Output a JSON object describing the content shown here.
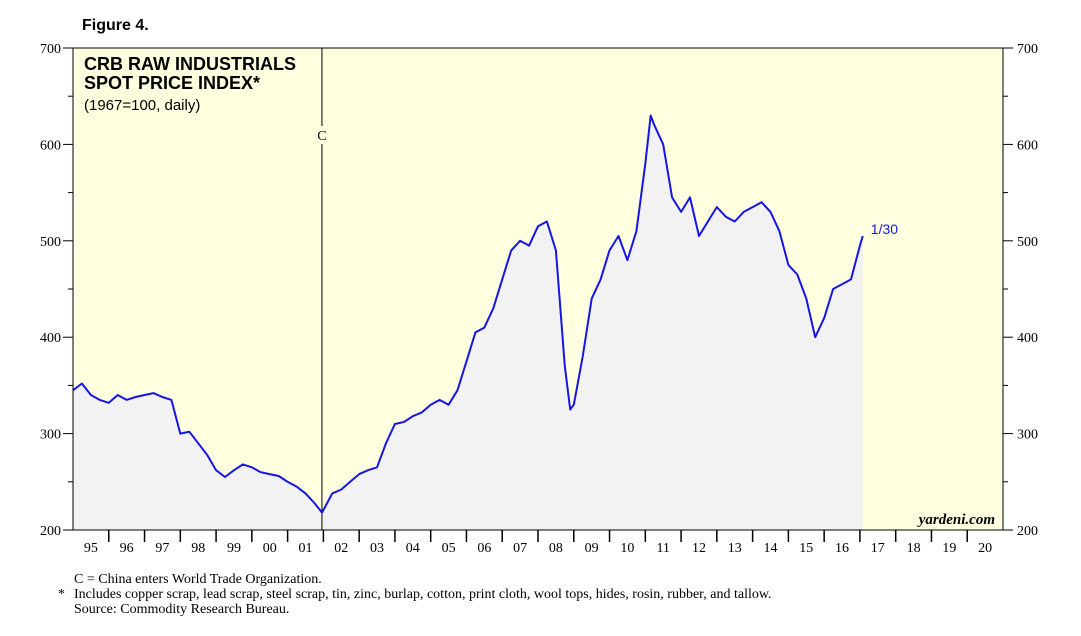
{
  "chart_data": {
    "type": "line",
    "figure_label": "Figure 4.",
    "title_lines": [
      "CRB RAW INDUSTRIALS",
      "SPOT PRICE INDEX*"
    ],
    "subtitle": "(1967=100, daily)",
    "watermark": "yardeni.com",
    "end_label": "1/30",
    "annotations": [
      {
        "label": "C",
        "x": 2001.96
      }
    ],
    "footnotes": [
      {
        "text": "C = China enters World Trade Organization."
      },
      {
        "marker": "*",
        "text": "Includes copper scrap, lead scrap, steel scrap, tin, zinc, burlap, cotton, print cloth, wool tops, hides, rosin, rubber, and tallow."
      },
      {
        "text": "Source: Commodity Research Bureau."
      }
    ],
    "xlim": [
      1995,
      2021
    ],
    "xticks": [
      {
        "value": 1995.5,
        "label": "95"
      },
      {
        "value": 1996.5,
        "label": "96"
      },
      {
        "value": 1997.5,
        "label": "97"
      },
      {
        "value": 1998.5,
        "label": "98"
      },
      {
        "value": 1999.5,
        "label": "99"
      },
      {
        "value": 2000.5,
        "label": "00"
      },
      {
        "value": 2001.5,
        "label": "01"
      },
      {
        "value": 2002.5,
        "label": "02"
      },
      {
        "value": 2003.5,
        "label": "03"
      },
      {
        "value": 2004.5,
        "label": "04"
      },
      {
        "value": 2005.5,
        "label": "05"
      },
      {
        "value": 2006.5,
        "label": "06"
      },
      {
        "value": 2007.5,
        "label": "07"
      },
      {
        "value": 2008.5,
        "label": "08"
      },
      {
        "value": 2009.5,
        "label": "09"
      },
      {
        "value": 2010.5,
        "label": "10"
      },
      {
        "value": 2011.5,
        "label": "11"
      },
      {
        "value": 2012.5,
        "label": "12"
      },
      {
        "value": 2013.5,
        "label": "13"
      },
      {
        "value": 2014.5,
        "label": "14"
      },
      {
        "value": 2015.5,
        "label": "15"
      },
      {
        "value": 2016.5,
        "label": "16"
      },
      {
        "value": 2017.5,
        "label": "17"
      },
      {
        "value": 2018.5,
        "label": "18"
      },
      {
        "value": 2019.5,
        "label": "19"
      },
      {
        "value": 2020.5,
        "label": "20"
      }
    ],
    "xminorticks": [
      1996,
      1997,
      1998,
      1999,
      2000,
      2001,
      2002,
      2003,
      2004,
      2005,
      2006,
      2007,
      2008,
      2009,
      2010,
      2011,
      2012,
      2013,
      2014,
      2015,
      2016,
      2017,
      2018,
      2019,
      2020
    ],
    "ylim": [
      200,
      700
    ],
    "yticks": [
      200,
      300,
      400,
      500,
      600,
      700
    ],
    "yminorticks": [
      250,
      350,
      450,
      550,
      650
    ],
    "background_color": "#ffffe0",
    "area_color": "#f2f2f2",
    "series": [
      {
        "name": "CRB Raw Industrials Spot Price Index",
        "color": "#1515e6",
        "x": [
          1995.0,
          1995.25,
          1995.5,
          1995.75,
          1996.0,
          1996.25,
          1996.5,
          1996.75,
          1997.0,
          1997.25,
          1997.5,
          1997.75,
          1998.0,
          1998.25,
          1998.5,
          1998.75,
          1999.0,
          1999.25,
          1999.5,
          1999.75,
          2000.0,
          2000.25,
          2000.5,
          2000.75,
          2001.0,
          2001.25,
          2001.5,
          2001.75,
          2001.96,
          2002.25,
          2002.5,
          2002.75,
          2003.0,
          2003.25,
          2003.5,
          2003.75,
          2004.0,
          2004.25,
          2004.5,
          2004.75,
          2005.0,
          2005.25,
          2005.5,
          2005.75,
          2006.0,
          2006.25,
          2006.5,
          2006.75,
          2007.0,
          2007.25,
          2007.5,
          2007.75,
          2008.0,
          2008.25,
          2008.5,
          2008.75,
          2008.9,
          2009.0,
          2009.25,
          2009.5,
          2009.75,
          2010.0,
          2010.25,
          2010.5,
          2010.75,
          2011.0,
          2011.15,
          2011.25,
          2011.5,
          2011.75,
          2012.0,
          2012.25,
          2012.5,
          2012.75,
          2013.0,
          2013.25,
          2013.5,
          2013.75,
          2014.0,
          2014.25,
          2014.5,
          2014.75,
          2015.0,
          2015.25,
          2015.5,
          2015.75,
          2016.0,
          2016.25,
          2016.5,
          2016.75,
          2017.0,
          2017.08
        ],
        "values": [
          345,
          352,
          340,
          335,
          332,
          340,
          335,
          338,
          340,
          342,
          338,
          335,
          300,
          302,
          290,
          278,
          262,
          255,
          262,
          268,
          265,
          260,
          258,
          256,
          250,
          245,
          238,
          228,
          218,
          238,
          242,
          250,
          258,
          262,
          265,
          290,
          310,
          312,
          318,
          322,
          330,
          335,
          330,
          345,
          375,
          405,
          410,
          430,
          460,
          490,
          500,
          495,
          515,
          520,
          490,
          370,
          325,
          330,
          380,
          440,
          460,
          490,
          505,
          480,
          510,
          580,
          630,
          620,
          600,
          545,
          530,
          545,
          505,
          520,
          535,
          525,
          520,
          530,
          535,
          540,
          530,
          510,
          475,
          465,
          440,
          400,
          420,
          450,
          455,
          460,
          495,
          505
        ]
      }
    ]
  }
}
